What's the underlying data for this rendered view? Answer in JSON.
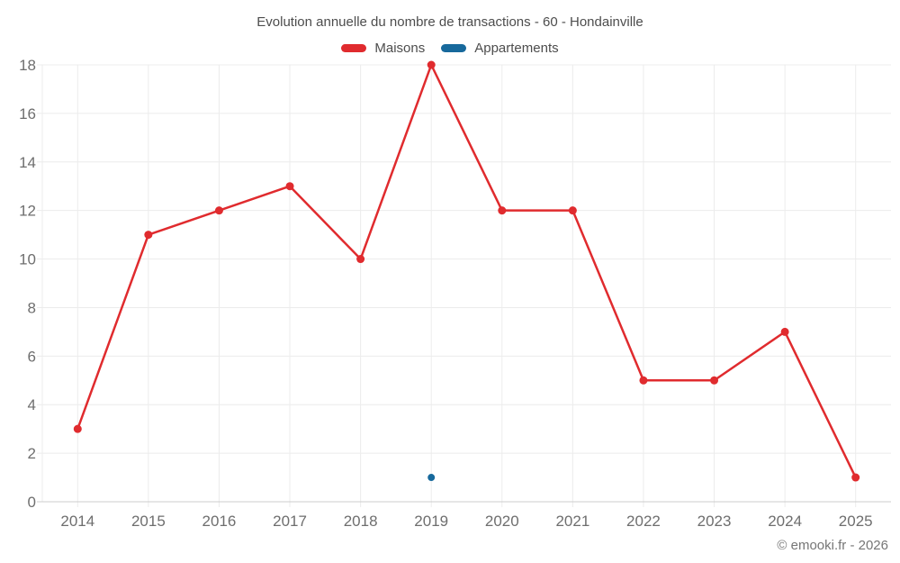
{
  "title": "Evolution annuelle du nombre de transactions - 60 - Hondainville",
  "legend": [
    {
      "label": "Maisons",
      "color": "#e02b2e"
    },
    {
      "label": "Appartements",
      "color": "#17699c"
    }
  ],
  "footer": "© emooki.fr - 2026",
  "colors": {
    "grid": "#ececec",
    "axis_line": "#cccccc",
    "axis_text": "#6e6e6e",
    "background": "#ffffff"
  },
  "chart_data": {
    "type": "line",
    "title": "Evolution annuelle du nombre de transactions - 60 - Hondainville",
    "categories": [
      "2014",
      "2015",
      "2016",
      "2017",
      "2018",
      "2019",
      "2020",
      "2021",
      "2022",
      "2023",
      "2024",
      "2025"
    ],
    "series": [
      {
        "name": "Maisons",
        "color": "#e02b2e",
        "values": [
          3,
          11,
          12,
          13,
          10,
          18,
          12,
          12,
          5,
          5,
          7,
          1
        ]
      },
      {
        "name": "Appartements",
        "color": "#17699c",
        "values": [
          null,
          null,
          null,
          null,
          null,
          1,
          null,
          null,
          null,
          null,
          null,
          null
        ]
      }
    ],
    "xlabel": "",
    "ylabel": "",
    "ylim": [
      0,
      18
    ],
    "ytick_step": 2,
    "grid": true,
    "legend_position": "top"
  }
}
